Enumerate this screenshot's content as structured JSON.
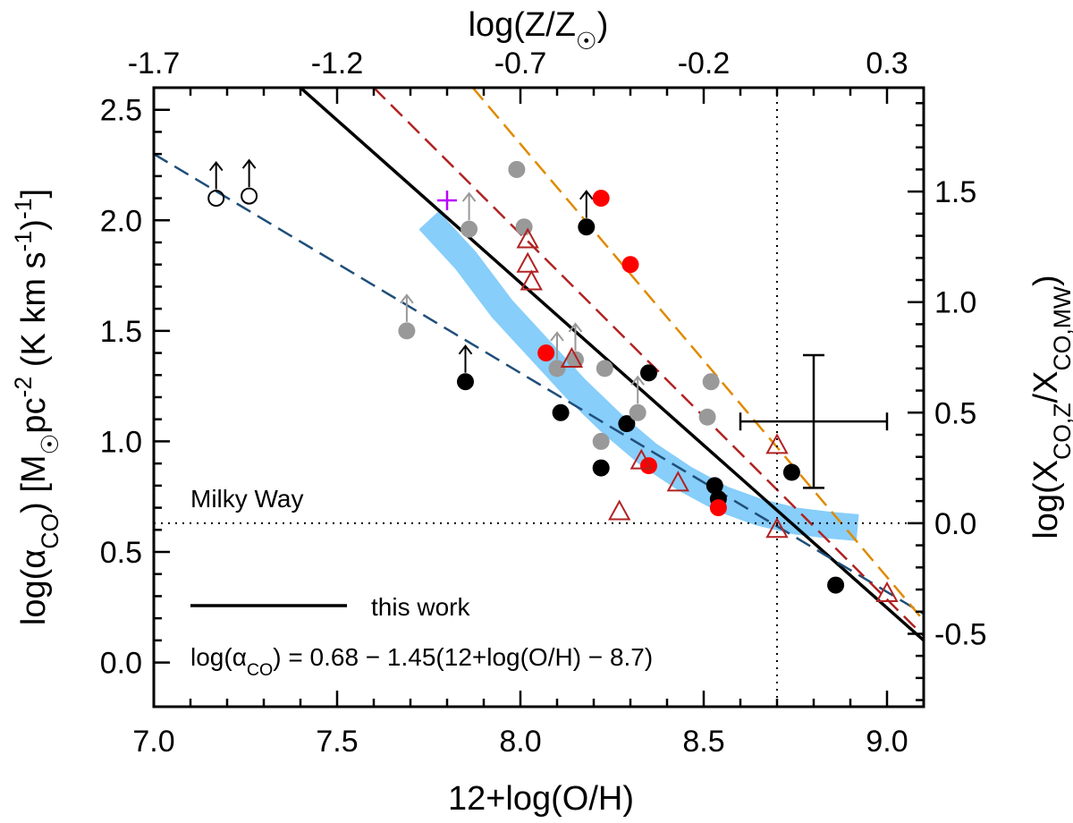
{
  "chart_data": {
    "type": "scatter",
    "xlim": [
      7.0,
      9.1
    ],
    "ylim": [
      -0.2,
      2.6
    ],
    "top_xlim": [
      -1.7,
      0.4
    ],
    "right_offset": 0.63,
    "x_ticks": [
      7.0,
      7.5,
      8.0,
      8.5,
      9.0
    ],
    "x_tick_labels": [
      "7.0",
      "7.5",
      "8.0",
      "8.5",
      "9.0"
    ],
    "y_ticks": [
      0.0,
      0.5,
      1.0,
      1.5,
      2.0,
      2.5
    ],
    "y_tick_labels": [
      "0.0",
      "0.5",
      "1.0",
      "1.5",
      "2.0",
      "2.5"
    ],
    "top_ticks": [
      -1.7,
      -1.2,
      -0.7,
      -0.2,
      0.3
    ],
    "top_tick_labels": [
      "-1.7",
      "-1.2",
      "-0.7",
      "-0.2",
      "0.3"
    ],
    "right_ticks": [
      -0.5,
      0.0,
      0.5,
      1.0,
      1.5
    ],
    "right_tick_labels": [
      "-0.5",
      "0.0",
      "0.5",
      "1.0",
      "1.5"
    ],
    "xlabel": "12+log(O/H)",
    "ylabel_parts": [
      "log(α",
      "CO",
      ") [M",
      "☉",
      "pc",
      "-2",
      " (K km s",
      "-1",
      ")",
      "-1",
      "]"
    ],
    "top_xlabel_parts": [
      "log(Z/Z",
      "☉",
      ")"
    ],
    "right_ylabel_parts": [
      "log(X",
      "CO,Z",
      "/X",
      "CO,MW",
      ")"
    ],
    "milky_way": {
      "label": "Milky Way",
      "x": 8.7,
      "y": 0.63
    },
    "legend": {
      "label": "this work"
    },
    "relation": {
      "parts": [
        "log(α",
        "CO",
        ") = 0.68 − 1.45(12+log(O/H) − 8.7)"
      ]
    },
    "lines": [
      {
        "name": "this work",
        "color": "#000000",
        "dash": "solid",
        "x": [
          7.4,
          9.1
        ],
        "y": [
          2.6,
          0.1
        ]
      },
      {
        "name": "navy dashed fit",
        "color": "#1f4e79",
        "dash": "dashed",
        "x": [
          7.0,
          9.1
        ],
        "y": [
          2.3,
          0.22
        ]
      },
      {
        "name": "dark red dashed fit",
        "color": "#b22222",
        "dash": "dashed",
        "x": [
          7.6,
          9.1
        ],
        "y": [
          2.6,
          0.12
        ]
      },
      {
        "name": "orange dashed fit",
        "color": "#e08a00",
        "dash": "dashed",
        "x": [
          7.87,
          9.1
        ],
        "y": [
          2.6,
          0.19
        ]
      }
    ],
    "model_band": {
      "color": "#87cefa",
      "x": [
        7.75,
        7.85,
        7.95,
        8.05,
        8.15,
        8.25,
        8.35,
        8.45,
        8.55,
        8.65,
        8.75,
        8.85,
        8.92
      ],
      "y": [
        2.0,
        1.82,
        1.6,
        1.42,
        1.24,
        1.08,
        0.94,
        0.83,
        0.74,
        0.68,
        0.64,
        0.62,
        0.61
      ]
    },
    "series": [
      {
        "name": "black circles",
        "marker": "filled-circle",
        "color": "#000000",
        "x": [
          7.85,
          8.11,
          8.18,
          8.22,
          8.29,
          8.35,
          8.53,
          8.54,
          8.74,
          8.86
        ],
        "y": [
          1.27,
          1.13,
          1.97,
          0.88,
          1.08,
          1.31,
          0.8,
          0.74,
          0.86,
          0.35
        ],
        "upper_arrow": [
          true,
          false,
          true,
          false,
          false,
          false,
          false,
          false,
          false,
          false
        ]
      },
      {
        "name": "gray circles",
        "marker": "filled-circle",
        "color": "#999999",
        "x": [
          7.69,
          7.86,
          7.99,
          8.01,
          8.1,
          8.15,
          8.22,
          8.23,
          8.32,
          8.51,
          8.52
        ],
        "y": [
          1.5,
          1.96,
          2.23,
          1.97,
          1.33,
          1.37,
          1.0,
          1.33,
          1.13,
          1.11,
          1.27
        ],
        "upper_arrow": [
          true,
          true,
          false,
          false,
          true,
          true,
          false,
          false,
          true,
          false,
          false
        ]
      },
      {
        "name": "red circles",
        "marker": "filled-circle",
        "color": "#ff0000",
        "x": [
          8.07,
          8.22,
          8.3,
          8.35,
          8.54
        ],
        "y": [
          1.4,
          2.1,
          1.8,
          0.89,
          0.7
        ],
        "upper_arrow": [
          false,
          false,
          false,
          false,
          false
        ]
      },
      {
        "name": "red open triangles",
        "marker": "open-triangle",
        "color": "#b22222",
        "x": [
          8.02,
          8.02,
          8.03,
          8.14,
          8.27,
          8.33,
          8.43,
          8.7,
          8.7,
          9.0
        ],
        "y": [
          1.91,
          1.8,
          1.72,
          1.37,
          0.68,
          0.91,
          0.81,
          0.98,
          0.6,
          0.31
        ],
        "upper_arrow": [
          false,
          false,
          false,
          false,
          false,
          false,
          false,
          false,
          false,
          false
        ]
      },
      {
        "name": "open circles",
        "marker": "open-circle",
        "color": "#000000",
        "x": [
          7.17,
          7.26
        ],
        "y": [
          2.1,
          2.11
        ],
        "upper_arrow": [
          true,
          true
        ]
      },
      {
        "name": "magenta plus",
        "marker": "plus",
        "color": "#bb00ff",
        "x": [
          7.8
        ],
        "y": [
          2.09
        ],
        "upper_arrow": [
          false
        ]
      }
    ],
    "error_bar": {
      "x": 8.8,
      "y": 1.09,
      "xerr": 0.2,
      "yerr": 0.3
    }
  }
}
